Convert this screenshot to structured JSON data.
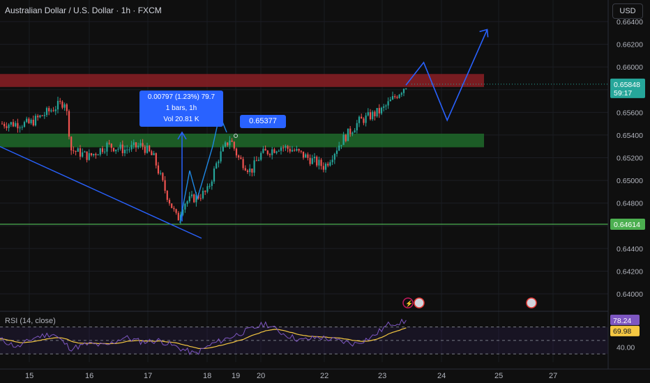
{
  "header": {
    "symbol_title": "Australian Dollar / U.S. Dollar · 1h · FXCM",
    "currency_button": "USD"
  },
  "measure_tooltip": {
    "line1": "0.00797 (1.23%) 79.7",
    "line2": "1 bars, 1h",
    "line3": "Vol 20.81 K"
  },
  "price_label": "0.65377",
  "rsi": {
    "label": "RSI (14, close)"
  },
  "colors": {
    "background": "#0f0f0f",
    "up": "#26a69a",
    "down": "#ef5350",
    "resistance_zone": "#8b1f24",
    "support_zone": "#1f6a2a",
    "support_line": "#4caf50",
    "projection": "#2962ff",
    "rsi_line": "#7e57c2",
    "rsi_ma": "#f5c842"
  },
  "chart_data": [
    {
      "type": "candlestick",
      "title": "Australian Dollar / U.S. Dollar · 1h · FXCM",
      "x_ticks": [
        "15",
        "16",
        "17",
        "18",
        "19",
        "20",
        "22",
        "23",
        "24",
        "25",
        "27"
      ],
      "y_ticks": [
        "0.66400",
        "0.66200",
        "0.66000",
        "0.65800",
        "0.65600",
        "0.65400",
        "0.65200",
        "0.65000",
        "0.64800",
        "0.64600",
        "0.64400",
        "0.64200",
        "0.64000"
      ],
      "ylim": [
        0.639,
        0.6651
      ],
      "current_price": {
        "value": 0.65848,
        "label": "0.65848",
        "countdown": "59:17"
      },
      "support_level": {
        "value": 0.64614,
        "label": "0.64614"
      },
      "zones": [
        {
          "name": "resistance",
          "from": 0.65824,
          "to": 0.65938
        },
        {
          "name": "support",
          "from": 0.65292,
          "to": 0.65412
        }
      ],
      "anchors": [
        {
          "date": "15",
          "close": 0.655
        },
        {
          "date": "15.6",
          "close": 0.657
        },
        {
          "date": "15.7",
          "close": 0.6527
        },
        {
          "date": "16",
          "close": 0.6521
        },
        {
          "date": "16.3",
          "close": 0.6531
        },
        {
          "date": "16.6",
          "close": 0.6527
        },
        {
          "date": "16.9",
          "close": 0.6531
        },
        {
          "date": "17.1",
          "close": 0.652
        },
        {
          "date": "17.3",
          "close": 0.649
        },
        {
          "date": "17.5",
          "close": 0.6465
        },
        {
          "date": "17.6",
          "close": 0.648
        },
        {
          "date": "18",
          "close": 0.649
        },
        {
          "date": "18.4",
          "close": 0.652
        },
        {
          "date": "18.8",
          "close": 0.6537
        },
        {
          "date": "19.1",
          "close": 0.652
        },
        {
          "date": "19.6",
          "close": 0.6508
        },
        {
          "date": "20",
          "close": 0.6523
        },
        {
          "date": "20.6",
          "close": 0.653
        },
        {
          "date": "21",
          "close": 0.6527
        },
        {
          "date": "22",
          "close": 0.6512
        },
        {
          "date": "22.3",
          "close": 0.6535
        },
        {
          "date": "22.6",
          "close": 0.6552
        },
        {
          "date": "23",
          "close": 0.6562
        },
        {
          "date": "23.4",
          "close": 0.6584
        }
      ],
      "projection_path": [
        {
          "date": "23.4",
          "price": 0.6584
        },
        {
          "date": "23.7",
          "price": 0.6604
        },
        {
          "date": "24.1",
          "price": 0.6553
        },
        {
          "date": "24.8",
          "price": 0.6633
        }
      ],
      "trendline": [
        {
          "date": "14.5",
          "price": 0.6541
        },
        {
          "date": "18",
          "price": 0.6449
        }
      ]
    },
    {
      "type": "line",
      "title": "RSI (14, close)",
      "y_ticks": [
        "40.00"
      ],
      "ylim": [
        20,
        85
      ],
      "levels": [
        70,
        50,
        30
      ],
      "series": [
        {
          "name": "",
          "last_value": 78.24,
          "label": "78.24"
        },
        {
          "name": "",
          "last_value": 69.98,
          "label": "69.98"
        }
      ],
      "rsi_anchors": [
        52,
        40,
        55,
        60,
        38,
        45,
        42,
        55,
        48,
        50,
        40,
        30,
        45,
        55,
        65,
        75,
        60,
        50,
        55,
        50,
        45,
        55,
        75,
        78
      ]
    }
  ]
}
